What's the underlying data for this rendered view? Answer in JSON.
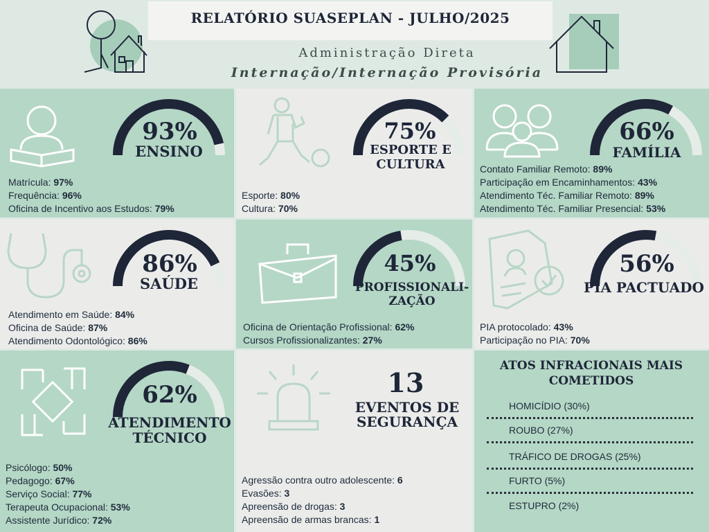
{
  "header": {
    "title": "RELATÓRIO SUASEPLAN - JULHO/2025",
    "subtitle1": "Administração Direta",
    "subtitle2": "Internação/Internação Provisória"
  },
  "colors": {
    "dark": "#1e2638",
    "navy": "#1d3d5a",
    "light_track": "#e6ece8",
    "green_bg": "#b5d7c6",
    "grey_bg": "#ebecea"
  },
  "tiles": {
    "ensino": {
      "percent": "93%",
      "value": 93,
      "label": "ENSINO",
      "icon": "reading-person-icon",
      "lines": [
        {
          "text": "Matrícula: ",
          "value": "97%"
        },
        {
          "text": "Frequência: ",
          "value": "96%"
        },
        {
          "text": "Oficina de Incentivo aos Estudos: ",
          "value": "79%"
        }
      ]
    },
    "esporte": {
      "percent": "75%",
      "value": 75,
      "label1": "ESPORTE E",
      "label2": "CULTURA",
      "icon": "soccer-player-icon",
      "lines": [
        {
          "text": "Esporte: ",
          "value": "80%"
        },
        {
          "text": "Cultura: ",
          "value": "70%"
        }
      ]
    },
    "familia": {
      "percent": "66%",
      "value": 66,
      "label": "FAMÍLIA",
      "icon": "family-icon",
      "lines": [
        {
          "text": "Contato Familiar Remoto: ",
          "value": "89%"
        },
        {
          "text": "Participação em Encaminhamentos: ",
          "value": "43%"
        },
        {
          "text": "Atendimento Téc. Familiar Remoto: ",
          "value": "89%"
        },
        {
          "text": "Atendimento Téc. Familiar Presencial: ",
          "value": "53%"
        }
      ]
    },
    "saude": {
      "percent": "86%",
      "value": 86,
      "label": "SAÚDE",
      "icon": "stethoscope-icon",
      "lines": [
        {
          "text": "Atendimento em Saúde: ",
          "value": "84%"
        },
        {
          "text": "Oficina de Saúde: ",
          "value": "87%"
        },
        {
          "text": "Atendimento Odontológico: ",
          "value": "86%"
        }
      ]
    },
    "profissionalizacao": {
      "percent": "45%",
      "value": 45,
      "label1": "PROFISSIONALI-",
      "label2": "ZAÇÃO",
      "icon": "briefcase-icon",
      "lines": [
        {
          "text": "Oficina de Orientação Profissional: ",
          "value": "62%"
        },
        {
          "text": "Cursos Profissionalizantes: ",
          "value": "27%"
        }
      ]
    },
    "pia": {
      "percent": "56%",
      "value": 56,
      "label": "PIA PACTUADO",
      "icon": "document-approved-icon",
      "lines": [
        {
          "text": "PIA protocolado: ",
          "value": "43%"
        },
        {
          "text": "Participação no PIA: ",
          "value": "70%"
        }
      ]
    },
    "atendimento": {
      "percent": "62%",
      "value": 62,
      "label1": "ATENDIMENTO",
      "label2": "TÉCNICO",
      "icon": "joined-hands-icon",
      "lines": [
        {
          "text": "Psicólogo: ",
          "value": "50%"
        },
        {
          "text": "Pedagogo: ",
          "value": "67%"
        },
        {
          "text": "Serviço Social: ",
          "value": "77%"
        },
        {
          "text": "Terapeuta Ocupacional: ",
          "value": "53%"
        },
        {
          "text": "Assistente Jurídico: ",
          "value": "72%"
        }
      ]
    },
    "seguranca": {
      "number": "13",
      "label1": "EVENTOS DE",
      "label2": "SEGURANÇA",
      "icon": "alarm-siren-icon",
      "lines": [
        {
          "text": "Agressão contra outro adolescente: ",
          "value": "6"
        },
        {
          "text": "Evasões: ",
          "value": "3"
        },
        {
          "text": "Apreensão de drogas: ",
          "value": "3"
        },
        {
          "text": "Apreensão de armas brancas: ",
          "value": "1"
        }
      ]
    },
    "atos": {
      "title1": "ATOS INFRACIONAIS MAIS",
      "title2": "COMETIDOS",
      "items": [
        "HOMICÍDIO (30%)",
        "ROUBO (27%)",
        "TRÁFICO DE DROGAS (25%)",
        "FURTO (5%)",
        "ESTUPRO (2%)"
      ]
    }
  }
}
